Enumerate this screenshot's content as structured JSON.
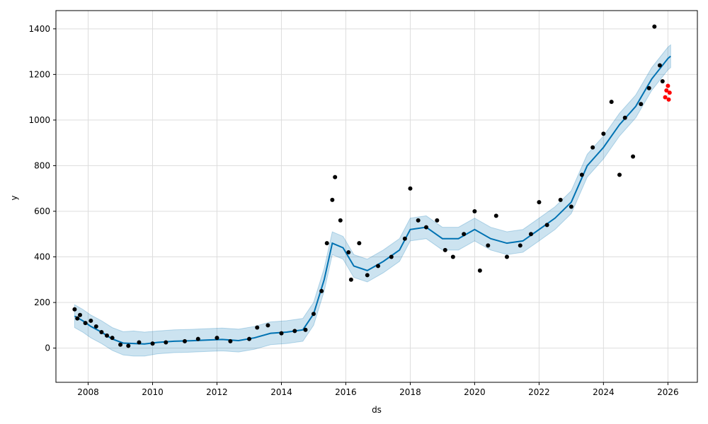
{
  "chart_data": {
    "type": "line",
    "xlabel": "ds",
    "ylabel": "y",
    "x_axis_type": "date",
    "xlim": [
      "2007-01-01",
      "2026-12-01"
    ],
    "ylim": [
      -150,
      1480
    ],
    "x_ticks": [
      "2008",
      "2010",
      "2012",
      "2014",
      "2016",
      "2018",
      "2020",
      "2022",
      "2024",
      "2026"
    ],
    "y_ticks": [
      0,
      200,
      400,
      600,
      800,
      1000,
      1200,
      1400
    ],
    "grid": true,
    "colors": {
      "forecast_line": "#0072B2",
      "interval_band": "#0072B2",
      "observed_points": "#000000",
      "future_points": "#ff0000"
    },
    "series": [
      {
        "role": "forecast",
        "points": [
          [
            "2007-08-01",
            140
          ],
          [
            "2007-11-01",
            120
          ],
          [
            "2008-02-01",
            95
          ],
          [
            "2008-06-01",
            70
          ],
          [
            "2008-10-01",
            40
          ],
          [
            "2009-02-01",
            22
          ],
          [
            "2009-06-01",
            20
          ],
          [
            "2009-10-01",
            18
          ],
          [
            "2010-03-01",
            25
          ],
          [
            "2010-09-01",
            30
          ],
          [
            "2011-03-01",
            32
          ],
          [
            "2011-09-01",
            35
          ],
          [
            "2012-03-01",
            38
          ],
          [
            "2012-09-01",
            33
          ],
          [
            "2013-03-01",
            45
          ],
          [
            "2013-09-01",
            65
          ],
          [
            "2014-03-01",
            70
          ],
          [
            "2014-09-01",
            80
          ],
          [
            "2015-01-01",
            150
          ],
          [
            "2015-05-01",
            300
          ],
          [
            "2015-08-01",
            460
          ],
          [
            "2015-12-01",
            440
          ],
          [
            "2016-04-01",
            360
          ],
          [
            "2016-09-01",
            340
          ],
          [
            "2017-03-01",
            380
          ],
          [
            "2017-09-01",
            430
          ],
          [
            "2018-01-01",
            520
          ],
          [
            "2018-07-01",
            530
          ],
          [
            "2019-01-01",
            480
          ],
          [
            "2019-07-01",
            480
          ],
          [
            "2020-01-01",
            520
          ],
          [
            "2020-07-01",
            480
          ],
          [
            "2021-01-01",
            460
          ],
          [
            "2021-07-01",
            470
          ],
          [
            "2022-01-01",
            520
          ],
          [
            "2022-07-01",
            570
          ],
          [
            "2023-01-01",
            640
          ],
          [
            "2023-07-01",
            800
          ],
          [
            "2024-01-01",
            880
          ],
          [
            "2024-07-01",
            980
          ],
          [
            "2025-01-01",
            1060
          ],
          [
            "2025-07-01",
            1180
          ],
          [
            "2026-01-01",
            1270
          ],
          [
            "2026-02-01",
            1280
          ]
        ],
        "lower": [
          [
            "2007-08-01",
            90
          ],
          [
            "2007-11-01",
            70
          ],
          [
            "2008-02-01",
            45
          ],
          [
            "2008-06-01",
            20
          ],
          [
            "2008-10-01",
            -10
          ],
          [
            "2009-02-01",
            -30
          ],
          [
            "2009-06-01",
            -35
          ],
          [
            "2009-10-01",
            -35
          ],
          [
            "2010-03-01",
            -25
          ],
          [
            "2010-09-01",
            -20
          ],
          [
            "2011-03-01",
            -18
          ],
          [
            "2011-09-01",
            -15
          ],
          [
            "2012-03-01",
            -12
          ],
          [
            "2012-09-01",
            -17
          ],
          [
            "2013-03-01",
            -5
          ],
          [
            "2013-09-01",
            15
          ],
          [
            "2014-03-01",
            20
          ],
          [
            "2014-09-01",
            30
          ],
          [
            "2015-01-01",
            100
          ],
          [
            "2015-05-01",
            250
          ],
          [
            "2015-08-01",
            410
          ],
          [
            "2015-12-01",
            390
          ],
          [
            "2016-04-01",
            310
          ],
          [
            "2016-09-01",
            290
          ],
          [
            "2017-03-01",
            330
          ],
          [
            "2017-09-01",
            380
          ],
          [
            "2018-01-01",
            470
          ],
          [
            "2018-07-01",
            480
          ],
          [
            "2019-01-01",
            430
          ],
          [
            "2019-07-01",
            430
          ],
          [
            "2020-01-01",
            470
          ],
          [
            "2020-07-01",
            430
          ],
          [
            "2021-01-01",
            410
          ],
          [
            "2021-07-01",
            420
          ],
          [
            "2022-01-01",
            470
          ],
          [
            "2022-07-01",
            520
          ],
          [
            "2023-01-01",
            590
          ],
          [
            "2023-07-01",
            750
          ],
          [
            "2024-01-01",
            830
          ],
          [
            "2024-07-01",
            930
          ],
          [
            "2025-01-01",
            1010
          ],
          [
            "2025-07-01",
            1130
          ],
          [
            "2026-01-01",
            1220
          ],
          [
            "2026-02-01",
            1230
          ]
        ],
        "upper": [
          [
            "2007-08-01",
            190
          ],
          [
            "2007-11-01",
            170
          ],
          [
            "2008-02-01",
            145
          ],
          [
            "2008-06-01",
            120
          ],
          [
            "2008-10-01",
            90
          ],
          [
            "2009-02-01",
            72
          ],
          [
            "2009-06-01",
            75
          ],
          [
            "2009-10-01",
            70
          ],
          [
            "2010-03-01",
            75
          ],
          [
            "2010-09-01",
            80
          ],
          [
            "2011-03-01",
            82
          ],
          [
            "2011-09-01",
            85
          ],
          [
            "2012-03-01",
            88
          ],
          [
            "2012-09-01",
            83
          ],
          [
            "2013-03-01",
            95
          ],
          [
            "2013-09-01",
            115
          ],
          [
            "2014-03-01",
            120
          ],
          [
            "2014-09-01",
            130
          ],
          [
            "2015-01-01",
            200
          ],
          [
            "2015-05-01",
            350
          ],
          [
            "2015-08-01",
            510
          ],
          [
            "2015-12-01",
            490
          ],
          [
            "2016-04-01",
            410
          ],
          [
            "2016-09-01",
            390
          ],
          [
            "2017-03-01",
            430
          ],
          [
            "2017-09-01",
            480
          ],
          [
            "2018-01-01",
            570
          ],
          [
            "2018-07-01",
            580
          ],
          [
            "2019-01-01",
            530
          ],
          [
            "2019-07-01",
            530
          ],
          [
            "2020-01-01",
            570
          ],
          [
            "2020-07-01",
            530
          ],
          [
            "2021-01-01",
            510
          ],
          [
            "2021-07-01",
            520
          ],
          [
            "2022-01-01",
            570
          ],
          [
            "2022-07-01",
            620
          ],
          [
            "2023-01-01",
            690
          ],
          [
            "2023-07-01",
            850
          ],
          [
            "2024-01-01",
            930
          ],
          [
            "2024-07-01",
            1030
          ],
          [
            "2025-01-01",
            1110
          ],
          [
            "2025-07-01",
            1230
          ],
          [
            "2026-01-01",
            1320
          ],
          [
            "2026-02-01",
            1330
          ]
        ]
      },
      {
        "role": "observed",
        "points": [
          [
            "2007-08-01",
            170
          ],
          [
            "2007-09-01",
            130
          ],
          [
            "2007-10-01",
            145
          ],
          [
            "2007-12-01",
            110
          ],
          [
            "2008-02-01",
            120
          ],
          [
            "2008-04-01",
            95
          ],
          [
            "2008-06-01",
            70
          ],
          [
            "2008-08-01",
            55
          ],
          [
            "2008-10-01",
            45
          ],
          [
            "2009-01-01",
            15
          ],
          [
            "2009-04-01",
            10
          ],
          [
            "2009-08-01",
            25
          ],
          [
            "2010-01-01",
            20
          ],
          [
            "2010-06-01",
            25
          ],
          [
            "2011-01-01",
            30
          ],
          [
            "2011-06-01",
            40
          ],
          [
            "2012-01-01",
            45
          ],
          [
            "2012-06-01",
            30
          ],
          [
            "2013-01-01",
            40
          ],
          [
            "2013-04-01",
            90
          ],
          [
            "2013-08-01",
            100
          ],
          [
            "2014-01-01",
            65
          ],
          [
            "2014-06-01",
            75
          ],
          [
            "2014-10-01",
            80
          ],
          [
            "2015-01-01",
            150
          ],
          [
            "2015-04-01",
            250
          ],
          [
            "2015-06-01",
            460
          ],
          [
            "2015-08-01",
            650
          ],
          [
            "2015-09-01",
            750
          ],
          [
            "2015-11-01",
            560
          ],
          [
            "2016-02-01",
            420
          ],
          [
            "2016-03-01",
            300
          ],
          [
            "2016-06-01",
            460
          ],
          [
            "2016-09-01",
            320
          ],
          [
            "2017-01-01",
            360
          ],
          [
            "2017-06-01",
            400
          ],
          [
            "2017-11-01",
            480
          ],
          [
            "2018-01-01",
            700
          ],
          [
            "2018-04-01",
            560
          ],
          [
            "2018-07-01",
            530
          ],
          [
            "2018-11-01",
            560
          ],
          [
            "2019-02-01",
            430
          ],
          [
            "2019-05-01",
            400
          ],
          [
            "2019-09-01",
            500
          ],
          [
            "2020-01-01",
            600
          ],
          [
            "2020-03-01",
            340
          ],
          [
            "2020-06-01",
            450
          ],
          [
            "2020-09-01",
            580
          ],
          [
            "2021-01-01",
            400
          ],
          [
            "2021-06-01",
            450
          ],
          [
            "2021-10-01",
            500
          ],
          [
            "2022-01-01",
            640
          ],
          [
            "2022-04-01",
            540
          ],
          [
            "2022-09-01",
            650
          ],
          [
            "2023-01-01",
            620
          ],
          [
            "2023-05-01",
            760
          ],
          [
            "2023-09-01",
            880
          ],
          [
            "2024-01-01",
            940
          ],
          [
            "2024-04-01",
            1080
          ],
          [
            "2024-07-01",
            760
          ],
          [
            "2024-09-01",
            1010
          ],
          [
            "2024-12-01",
            840
          ],
          [
            "2025-03-01",
            1070
          ],
          [
            "2025-06-01",
            1140
          ],
          [
            "2025-08-01",
            1410
          ],
          [
            "2025-10-01",
            1240
          ],
          [
            "2025-11-01",
            1170
          ]
        ]
      },
      {
        "role": "future",
        "points": [
          [
            "2025-12-01",
            1100
          ],
          [
            "2025-12-15",
            1130
          ],
          [
            "2026-01-01",
            1150
          ],
          [
            "2026-01-10",
            1090
          ],
          [
            "2026-01-20",
            1120
          ]
        ]
      }
    ]
  }
}
